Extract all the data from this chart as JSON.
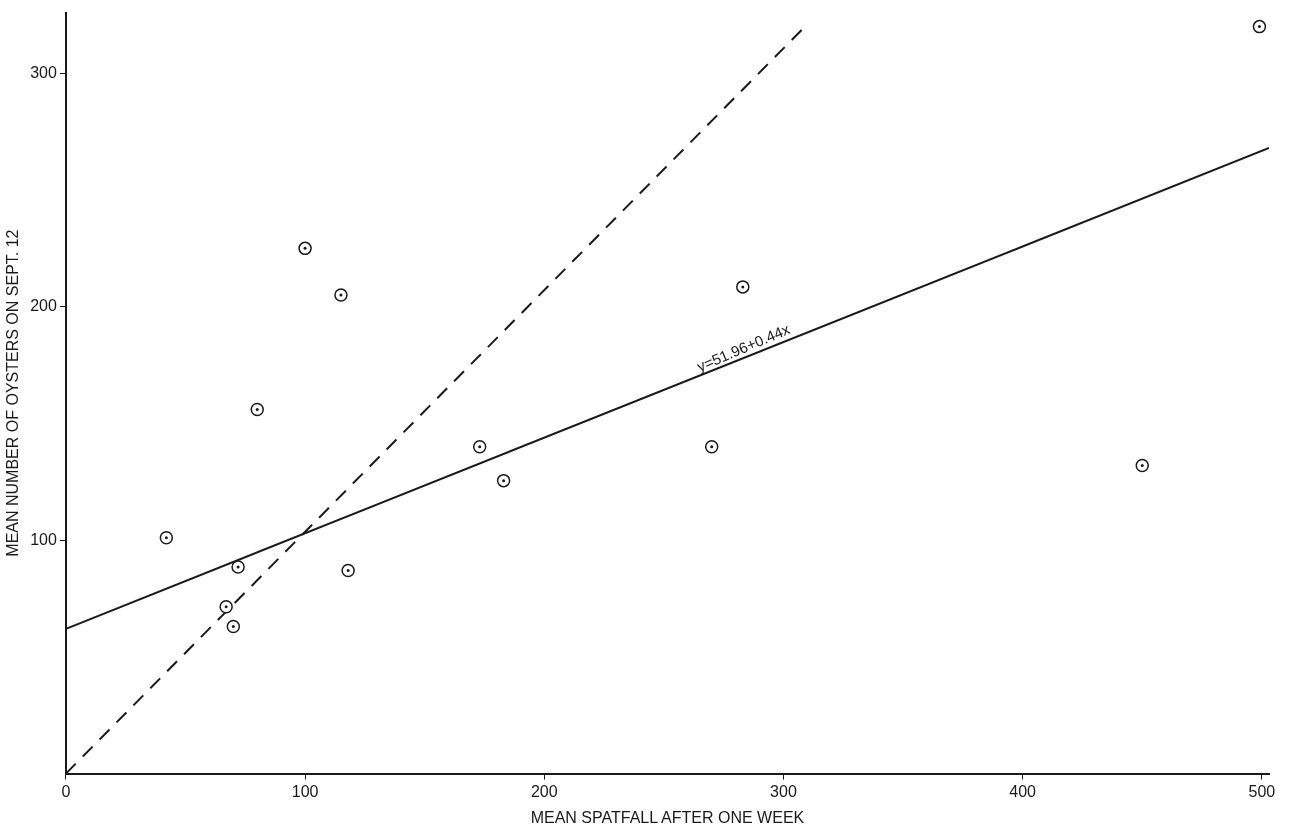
{
  "chart_data": {
    "type": "scatter",
    "xlabel": "MEAN SPATFALL AFTER ONE WEEK",
    "ylabel": "MEAN NUMBER OF OYSTERS ON SEPT. 12",
    "xlim": [
      0,
      503
    ],
    "ylim": [
      0,
      326
    ],
    "xticks": [
      0,
      100,
      200,
      300,
      400,
      500
    ],
    "yticks": [
      100,
      200,
      300
    ],
    "grid": false,
    "legend": false,
    "marker": "circle",
    "series": [
      {
        "type": "scatter",
        "color": "#1a1a1a",
        "x": [
          42,
          72,
          67,
          70,
          80,
          100,
          115,
          118,
          173,
          183,
          270,
          283,
          450,
          499
        ],
        "values": [
          101,
          88.5,
          71.5,
          63,
          156,
          225,
          205,
          87,
          140,
          125.5,
          140,
          208.5,
          132,
          320
        ]
      },
      {
        "type": "line",
        "color": "#1a1a1a",
        "marker": "none",
        "line_style": "solid",
        "x": [
          0,
          503
        ],
        "values": [
          62,
          268
        ]
      },
      {
        "type": "line",
        "color": "#1a1a1a",
        "marker": "none",
        "line_style": "dashed",
        "x": [
          0,
          309
        ],
        "values": [
          0,
          320
        ]
      }
    ],
    "annotations": [
      {
        "text": "y=51.96+0.44x",
        "x": 265,
        "y": 172
      }
    ]
  }
}
